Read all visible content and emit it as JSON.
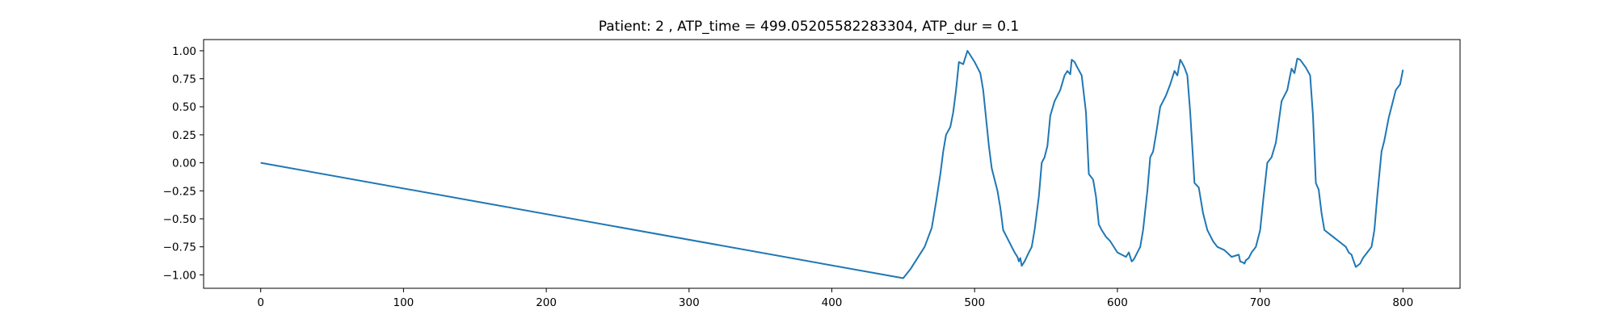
{
  "chart_data": {
    "type": "line",
    "title": "Patient: 2 , ATP_time = 499.05205582283304, ATP_dur = 0.1",
    "xlabel": "",
    "ylabel": "",
    "xlim": [
      -40,
      840
    ],
    "ylim": [
      -1.12,
      1.1
    ],
    "xticks": [
      0,
      100,
      200,
      300,
      400,
      500,
      600,
      700,
      800
    ],
    "xtick_labels": [
      "0",
      "100",
      "200",
      "300",
      "400",
      "500",
      "600",
      "700",
      "800"
    ],
    "yticks": [
      1.0,
      0.75,
      0.5,
      0.25,
      0.0,
      -0.25,
      -0.5,
      -0.75,
      -1.0
    ],
    "ytick_labels": [
      "1.00",
      "0.75",
      "0.50",
      "0.25",
      "0.00",
      "−0.25",
      "−0.50",
      "−0.75",
      "−1.00"
    ],
    "grid": false,
    "series": [
      {
        "color": "#1f77b4",
        "x": [
          0,
          450,
          455,
          460,
          465,
          470,
          473,
          476,
          478,
          480,
          483,
          485,
          487,
          489,
          492,
          495,
          500,
          502,
          504,
          506,
          508,
          510,
          512,
          514,
          516,
          518,
          520,
          522,
          524,
          526,
          528,
          530,
          531,
          532,
          533,
          535,
          538,
          540,
          542,
          545,
          547,
          549,
          551,
          553,
          556,
          560,
          563,
          565,
          567,
          568,
          570,
          572,
          575,
          578,
          580,
          583,
          585,
          587,
          589,
          592,
          595,
          600,
          603,
          606,
          608,
          610,
          611,
          612,
          614,
          616,
          618,
          621,
          623,
          625,
          627,
          630,
          634,
          637,
          640,
          642,
          644,
          645,
          647,
          649,
          651,
          654,
          657,
          660,
          663,
          665,
          667,
          670,
          675,
          680,
          685,
          686,
          688,
          689,
          690,
          692,
          694,
          697,
          700,
          702,
          705,
          708,
          711,
          715,
          719,
          721,
          722,
          724,
          726,
          728,
          732,
          735,
          737,
          739,
          741,
          743,
          745,
          750,
          757,
          760,
          762,
          764,
          765,
          767,
          770,
          772,
          775,
          778,
          780,
          782,
          785,
          787,
          790,
          793,
          795,
          798,
          800
        ],
        "y": [
          0.0,
          -1.03,
          -0.95,
          -0.85,
          -0.75,
          -0.58,
          -0.35,
          -0.1,
          0.1,
          0.25,
          0.32,
          0.45,
          0.65,
          0.9,
          0.88,
          1.0,
          0.9,
          0.85,
          0.8,
          0.65,
          0.4,
          0.15,
          -0.05,
          -0.15,
          -0.25,
          -0.4,
          -0.6,
          -0.65,
          -0.7,
          -0.75,
          -0.8,
          -0.84,
          -0.88,
          -0.85,
          -0.92,
          -0.88,
          -0.8,
          -0.75,
          -0.6,
          -0.3,
          0.0,
          0.05,
          0.15,
          0.42,
          0.55,
          0.65,
          0.78,
          0.82,
          0.79,
          0.92,
          0.9,
          0.85,
          0.78,
          0.45,
          -0.1,
          -0.15,
          -0.3,
          -0.55,
          -0.6,
          -0.66,
          -0.7,
          -0.8,
          -0.82,
          -0.84,
          -0.8,
          -0.88,
          -0.87,
          -0.85,
          -0.8,
          -0.75,
          -0.6,
          -0.25,
          0.05,
          0.1,
          0.25,
          0.5,
          0.6,
          0.7,
          0.82,
          0.78,
          0.92,
          0.9,
          0.85,
          0.78,
          0.45,
          -0.18,
          -0.22,
          -0.45,
          -0.6,
          -0.65,
          -0.7,
          -0.75,
          -0.78,
          -0.84,
          -0.82,
          -0.88,
          -0.89,
          -0.9,
          -0.87,
          -0.85,
          -0.8,
          -0.75,
          -0.6,
          -0.35,
          0.0,
          0.05,
          0.18,
          0.55,
          0.65,
          0.78,
          0.84,
          0.8,
          0.93,
          0.92,
          0.85,
          0.78,
          0.42,
          -0.18,
          -0.24,
          -0.45,
          -0.6,
          -0.65,
          -0.72,
          -0.75,
          -0.8,
          -0.82,
          -0.86,
          -0.93,
          -0.9,
          -0.85,
          -0.8,
          -0.75,
          -0.6,
          -0.3,
          0.1,
          0.2,
          0.4,
          0.55,
          0.65,
          0.7,
          0.83
        ]
      }
    ]
  }
}
